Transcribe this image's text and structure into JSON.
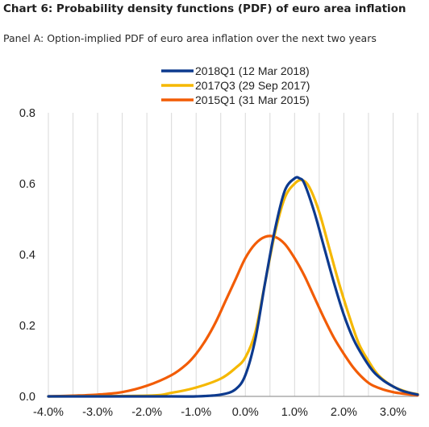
{
  "header": {
    "title": "Chart 6: Probability density functions (PDF) of euro area inflation",
    "subtitle": "Panel A: Option-implied PDF of euro area inflation over the next two years"
  },
  "chart_data": {
    "type": "line",
    "xlabel": "",
    "ylabel": "",
    "xlim": [
      -4.0,
      3.5
    ],
    "ylim": [
      0,
      0.8
    ],
    "x_ticks": [
      -4.0,
      -3.0,
      -2.0,
      -1.0,
      0.0,
      1.0,
      2.0,
      3.0
    ],
    "x_tick_labels": [
      "-4.0%",
      "-3.0%",
      "-2.0%",
      "-1.0%",
      "0.0%",
      "1.0%",
      "2.0%",
      "3.0%"
    ],
    "y_ticks": [
      0,
      0.2,
      0.4,
      0.6,
      0.8
    ],
    "y_tick_labels": [
      "0.0",
      "0.2",
      "0.4",
      "0.6",
      "0.8"
    ],
    "grid": "vertical",
    "legend_position": "top-center",
    "series": [
      {
        "name": "2018Q1 (12 Mar 2018)",
        "color": "#0d3a8e",
        "x": [
          -4.0,
          -1.5,
          -1.0,
          -0.5,
          -0.2,
          0.0,
          0.2,
          0.4,
          0.6,
          0.8,
          1.0,
          1.1,
          1.2,
          1.4,
          1.6,
          1.8,
          2.0,
          2.2,
          2.4,
          2.6,
          2.8,
          3.0,
          3.2,
          3.5
        ],
        "y": [
          0.0,
          0.0,
          0.0,
          0.005,
          0.02,
          0.06,
          0.16,
          0.32,
          0.47,
          0.58,
          0.615,
          0.615,
          0.6,
          0.52,
          0.42,
          0.32,
          0.23,
          0.16,
          0.11,
          0.07,
          0.045,
          0.028,
          0.015,
          0.005
        ]
      },
      {
        "name": "2017Q3 (29 Sep 2017)",
        "color": "#f5b800",
        "x": [
          -4.0,
          -2.0,
          -1.5,
          -1.0,
          -0.5,
          -0.2,
          0.0,
          0.2,
          0.4,
          0.6,
          0.8,
          1.0,
          1.15,
          1.3,
          1.5,
          1.7,
          1.9,
          2.1,
          2.3,
          2.5,
          2.7,
          3.0,
          3.3,
          3.5
        ],
        "y": [
          0.0,
          0.002,
          0.01,
          0.025,
          0.05,
          0.08,
          0.11,
          0.18,
          0.32,
          0.46,
          0.56,
          0.6,
          0.61,
          0.59,
          0.52,
          0.42,
          0.32,
          0.23,
          0.15,
          0.1,
          0.06,
          0.028,
          0.012,
          0.006
        ]
      },
      {
        "name": "2015Q1 (31 Mar 2015)",
        "color": "#f25c05",
        "x": [
          -4.0,
          -3.5,
          -3.0,
          -2.5,
          -2.0,
          -1.5,
          -1.2,
          -1.0,
          -0.8,
          -0.6,
          -0.4,
          -0.2,
          0.0,
          0.2,
          0.4,
          0.6,
          0.8,
          1.0,
          1.2,
          1.4,
          1.6,
          1.8,
          2.0,
          2.2,
          2.4,
          2.6,
          3.0,
          3.5
        ],
        "y": [
          0.0,
          0.002,
          0.005,
          0.012,
          0.03,
          0.06,
          0.09,
          0.12,
          0.16,
          0.21,
          0.27,
          0.33,
          0.39,
          0.43,
          0.45,
          0.45,
          0.43,
          0.39,
          0.34,
          0.28,
          0.22,
          0.165,
          0.12,
          0.08,
          0.05,
          0.03,
          0.012,
          0.003
        ]
      }
    ]
  }
}
